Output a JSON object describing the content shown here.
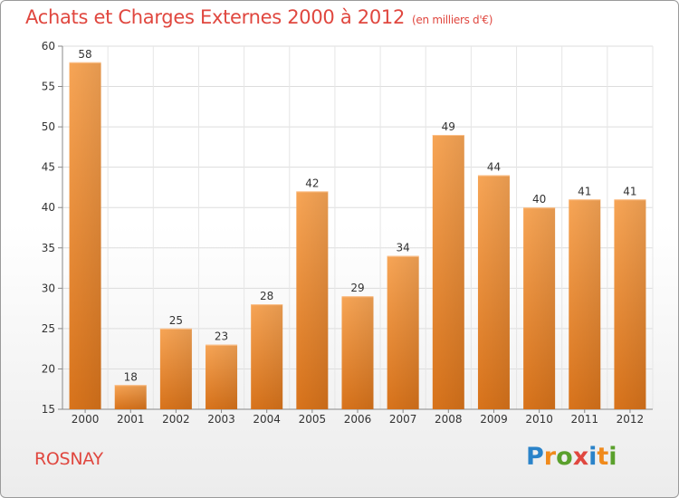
{
  "header": {
    "title": "Achats et Charges Externes 2000 à 2012",
    "subtitle": "(en milliers d'€)"
  },
  "footer": {
    "commune": "ROSNAY",
    "logo": "Proxiti",
    "logo_letters": [
      "P",
      "r",
      "o",
      "x",
      "i",
      "t",
      "i"
    ],
    "logo_colors": [
      "#2a83c9",
      "#f08a1c",
      "#5aa02c",
      "#e0473f",
      "#2a83c9",
      "#f08a1c",
      "#5aa02c"
    ]
  },
  "chart_data": {
    "type": "bar",
    "categories": [
      "2000",
      "2001",
      "2002",
      "2003",
      "2004",
      "2005",
      "2006",
      "2007",
      "2008",
      "2009",
      "2010",
      "2011",
      "2012"
    ],
    "values": [
      58,
      18,
      25,
      23,
      28,
      42,
      29,
      34,
      49,
      44,
      40,
      41,
      41
    ],
    "title": "Achats et Charges Externes 2000 à 2012",
    "subtitle": "(en milliers d'€)",
    "ylim": [
      15,
      60
    ],
    "yticks": [
      15,
      20,
      25,
      30,
      35,
      40,
      45,
      50,
      55,
      60
    ],
    "grid": true,
    "bar_color": "#f0902f"
  }
}
